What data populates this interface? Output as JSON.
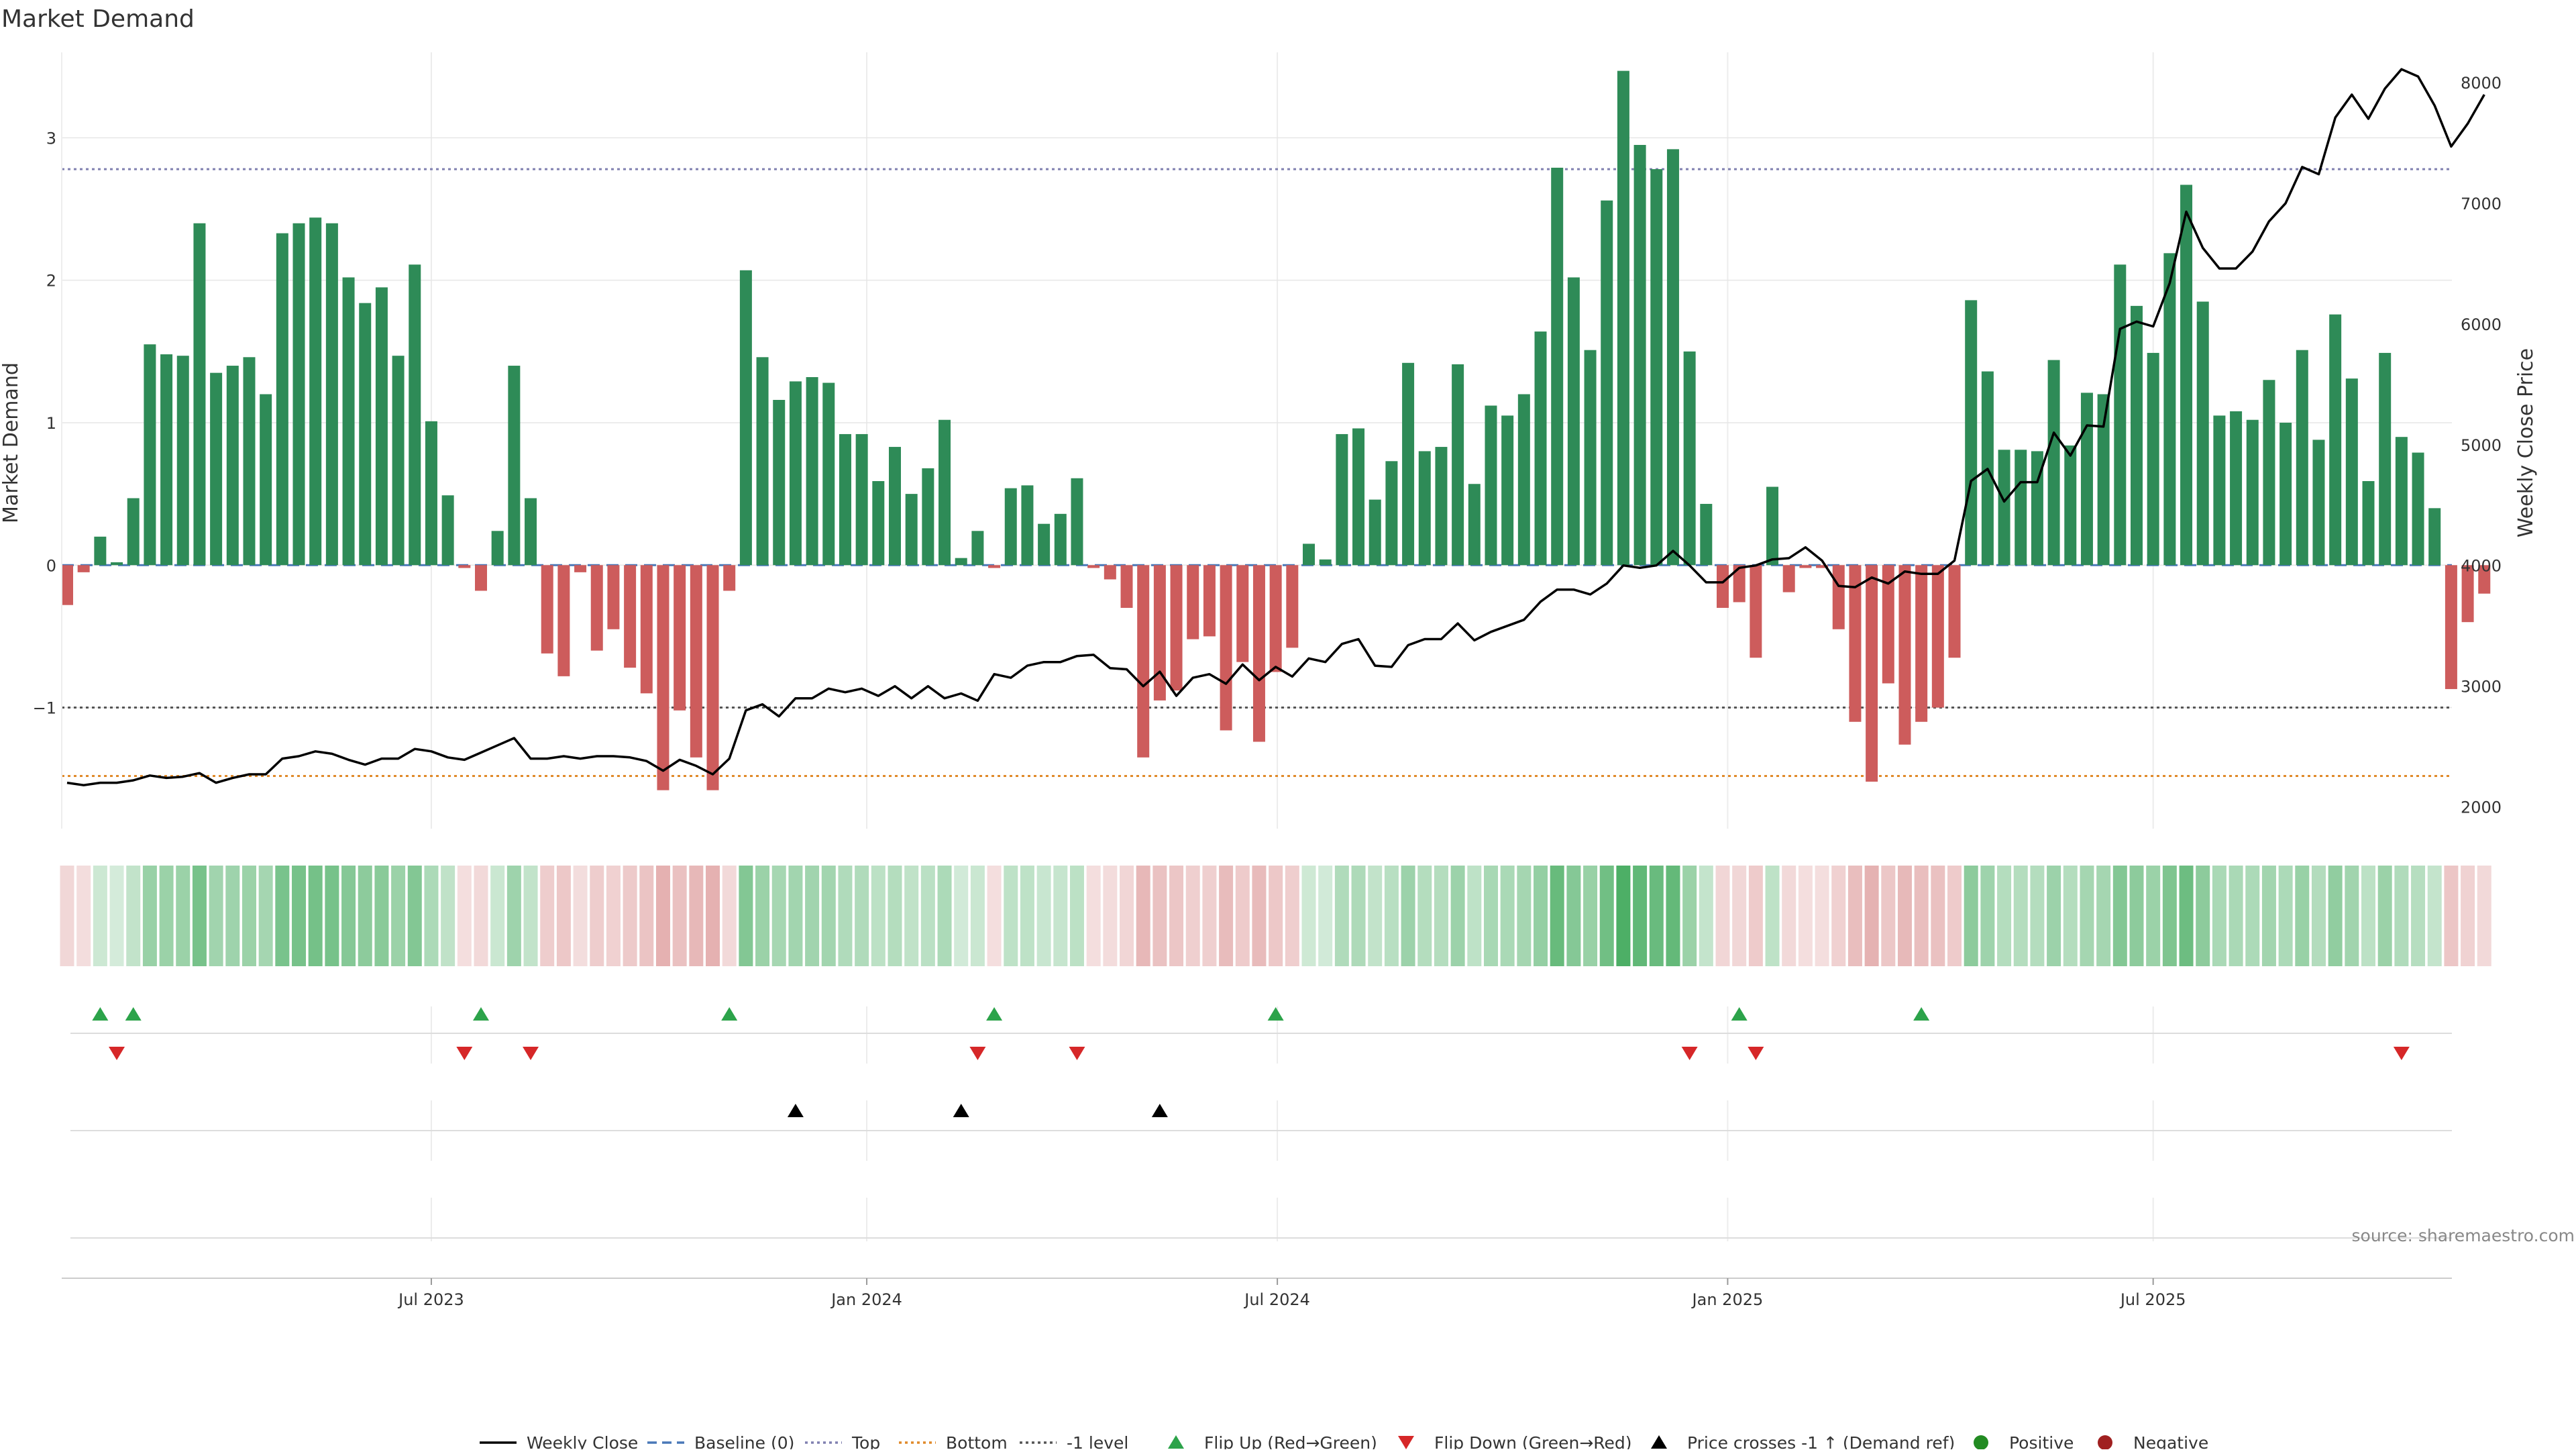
{
  "chart_data": {
    "type": "bar",
    "title": "Market Demand",
    "ylabel": "Market Demand",
    "y2label": "Weekly Close Price",
    "ylim": [
      -1.85,
      3.6
    ],
    "y2lim": [
      1820,
      8250
    ],
    "yticks": [
      -1,
      0,
      1,
      2,
      3
    ],
    "ytick_labels": [
      "−1",
      "0",
      "1",
      "2",
      "3"
    ],
    "y2ticks": [
      2000,
      3000,
      4000,
      5000,
      6000,
      7000,
      8000
    ],
    "y2tick_labels": [
      "2000",
      "3000",
      "4000",
      "5000",
      "6000",
      "7000",
      "8000"
    ],
    "xtick_labels": [
      "Jul 2023",
      "Jan 2024",
      "Jul 2024",
      "Jan 2025",
      "Jul 2025"
    ],
    "xtick_weeks": [
      22,
      48.3,
      73.1,
      100.3,
      126
    ],
    "reference_lines": {
      "top": 2.78,
      "bottom": -1.48,
      "minus_one": -1.0,
      "baseline": 0
    },
    "demand": [
      -0.28,
      -0.05,
      0.2,
      0.02,
      0.47,
      1.55,
      1.48,
      1.47,
      2.4,
      1.35,
      1.4,
      1.46,
      1.2,
      2.33,
      2.4,
      2.44,
      2.4,
      2.02,
      1.84,
      1.95,
      1.47,
      2.11,
      1.01,
      0.49,
      -0.02,
      -0.18,
      0.24,
      1.4,
      0.47,
      -0.62,
      -0.78,
      -0.05,
      -0.6,
      -0.45,
      -0.72,
      -0.9,
      -1.58,
      -1.02,
      -1.35,
      -1.58,
      -0.18,
      2.07,
      1.46,
      1.16,
      1.29,
      1.32,
      1.28,
      0.92,
      0.92,
      0.59,
      0.83,
      0.5,
      0.68,
      1.02,
      0.05,
      0.24,
      -0.02,
      0.54,
      0.56,
      0.29,
      0.36,
      0.61,
      -0.02,
      -0.1,
      -0.3,
      -1.35,
      -0.95,
      -0.88,
      -0.52,
      -0.5,
      -1.16,
      -0.68,
      -1.24,
      -0.75,
      -0.58,
      0.15,
      0.04,
      0.92,
      0.96,
      0.46,
      0.73,
      1.42,
      0.8,
      0.83,
      1.41,
      0.57,
      1.12,
      1.05,
      1.2,
      1.64,
      2.79,
      2.02,
      1.51,
      2.56,
      3.47,
      2.95,
      2.78,
      2.92,
      1.5,
      0.43,
      -0.3,
      -0.26,
      -0.65,
      0.55,
      -0.19,
      -0.02,
      -0.02,
      -0.45,
      -1.1,
      -1.52,
      -0.83,
      -1.26,
      -1.1,
      -1.0,
      -0.65,
      1.86,
      1.36,
      0.81,
      0.81,
      0.8,
      1.44,
      0.84,
      1.21,
      1.2,
      2.11,
      1.82,
      1.49,
      2.19,
      2.67,
      1.85,
      1.05,
      1.08,
      1.02,
      1.3,
      1.0,
      1.51,
      0.88,
      1.76,
      1.31,
      0.59,
      1.49,
      0.9,
      0.79,
      0.4,
      -0.87,
      -0.4,
      -0.2
    ],
    "weekly_close": [
      2200,
      2180,
      2200,
      2200,
      2220,
      2260,
      2240,
      2250,
      2280,
      2200,
      2240,
      2270,
      2270,
      2400,
      2420,
      2460,
      2440,
      2390,
      2350,
      2400,
      2400,
      2480,
      2460,
      2410,
      2390,
      2450,
      2510,
      2570,
      2400,
      2400,
      2420,
      2400,
      2420,
      2420,
      2410,
      2380,
      2300,
      2390,
      2340,
      2270,
      2400,
      2800,
      2850,
      2750,
      2900,
      2900,
      2980,
      2950,
      2980,
      2920,
      3000,
      2900,
      3000,
      2900,
      2940,
      2880,
      3100,
      3070,
      3170,
      3200,
      3200,
      3250,
      3260,
      3150,
      3140,
      3000,
      3120,
      2920,
      3070,
      3100,
      3020,
      3180,
      3050,
      3160,
      3080,
      3230,
      3200,
      3350,
      3390,
      3170,
      3160,
      3340,
      3390,
      3390,
      3520,
      3380,
      3450,
      3500,
      3550,
      3700,
      3800,
      3800,
      3760,
      3850,
      4000,
      3980,
      4000,
      4120,
      4000,
      3860,
      3860,
      3980,
      4000,
      4050,
      4060,
      4150,
      4040,
      3830,
      3820,
      3900,
      3850,
      3950,
      3930,
      3930,
      4040,
      4700,
      4800,
      4530,
      4690,
      4690,
      5100,
      4910,
      5160,
      5150,
      5960,
      6020,
      5980,
      6340,
      6930,
      6630,
      6460,
      6460,
      6600,
      6850,
      7000,
      7300,
      7240,
      7710,
      7900,
      7700,
      7950,
      8110,
      8050,
      7810,
      7470,
      7660,
      7900
    ],
    "flip_up_weeks": [
      2,
      4,
      25,
      40,
      56,
      73,
      101,
      112
    ],
    "flip_down_weeks": [
      3,
      24,
      28,
      55,
      61,
      98,
      102,
      141
    ],
    "price_cross_weeks": [
      44,
      54,
      66
    ],
    "legend": [
      "Weekly Close",
      "Baseline (0)",
      "Top",
      "Bottom",
      "-1 level",
      "Flip Up (Red→Green)",
      "Flip Down (Green→Red)",
      "Price crosses -1 ↑ (Demand ref)",
      "Positive",
      "Negative"
    ],
    "legend_placement": "bottom-center",
    "annotation": "source: sharemaestro.com",
    "colors": {
      "positive": "#2e8b57",
      "negative": "#cd5c5c",
      "price_line": "#000000",
      "baseline": "#4a78b8",
      "top": "#8080b0",
      "bottom": "#e08a2a",
      "minus_one": "#555555",
      "flip_up": "#2ca34a",
      "flip_down": "#d62728",
      "price_cross": "#000000",
      "legend_positive_dot": "#228b22",
      "legend_negative_dot": "#a02020"
    }
  }
}
